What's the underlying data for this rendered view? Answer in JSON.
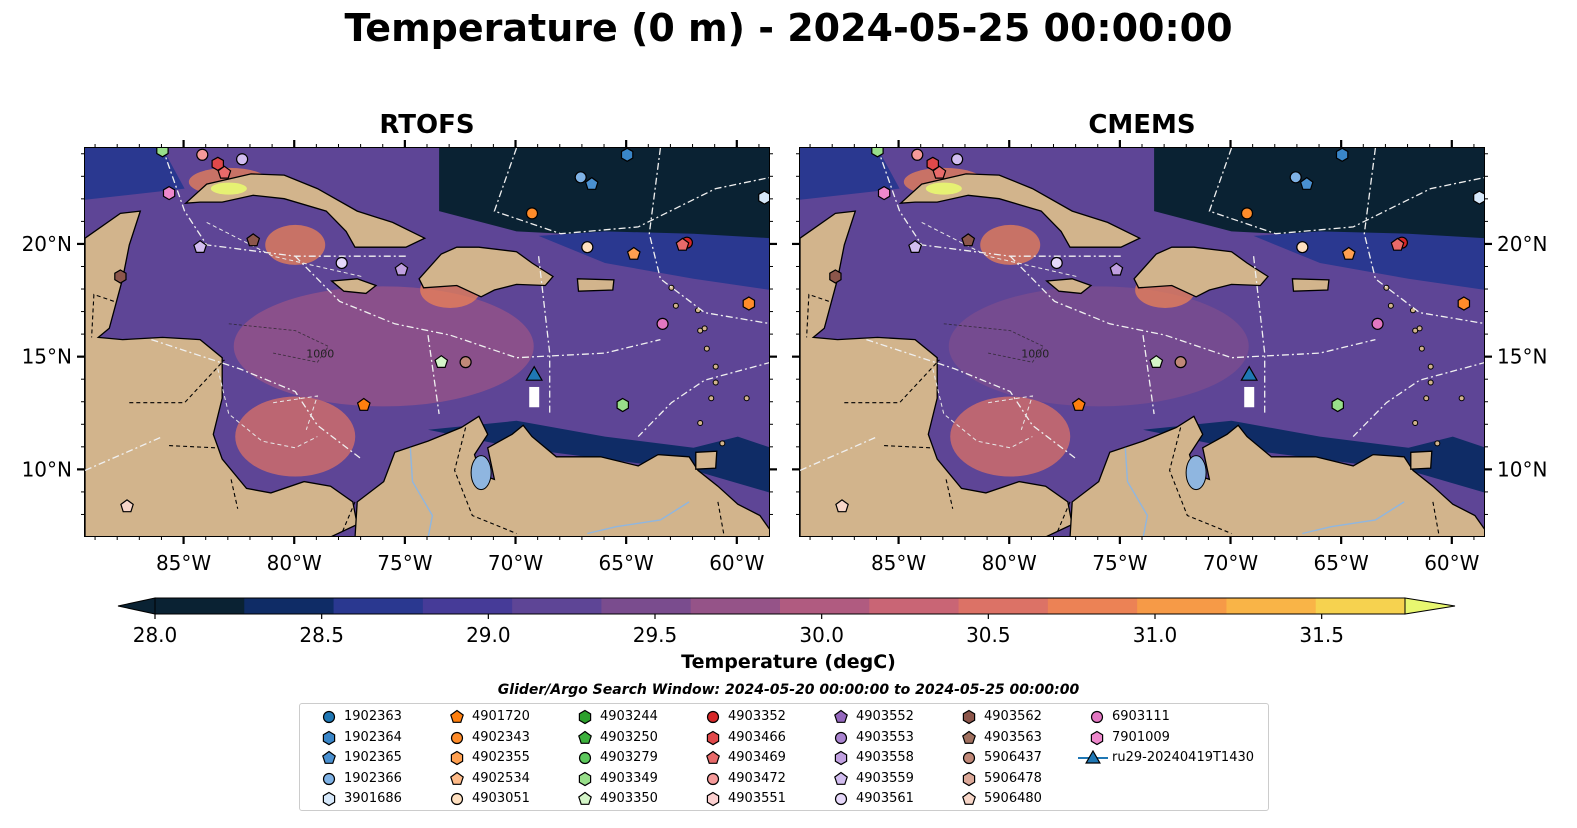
{
  "title": "Temperature (0 m) - 2024-05-25 00:00:00",
  "panels": [
    {
      "title": "RTOFS"
    },
    {
      "title": "CMEMS"
    }
  ],
  "axes": {
    "lon_ticks": [
      "85°W",
      "80°W",
      "75°W",
      "70°W",
      "65°W",
      "60°W"
    ],
    "lat_ticks": [
      "20°N",
      "15°N",
      "10°N"
    ],
    "lon_range": [
      -89.5,
      -58.5
    ],
    "lat_range": [
      7.0,
      24.3
    ],
    "contour_labels": [
      "1000",
      "1000"
    ]
  },
  "colorbar": {
    "label": "Temperature (degC)",
    "ticks": [
      "28.0",
      "28.5",
      "29.0",
      "29.5",
      "30.0",
      "30.5",
      "31.0",
      "31.5"
    ],
    "range": [
      28.0,
      31.75
    ],
    "colors": [
      "#0a2233",
      "#0f2c66",
      "#2a3890",
      "#463b98",
      "#5e4596",
      "#7a4c8e",
      "#955388",
      "#b05b80",
      "#c96575",
      "#dc7266",
      "#ec8255",
      "#f69a47",
      "#f9b447",
      "#f6d24f",
      "#e8f770"
    ]
  },
  "search_window": "Glider/Argo Search Window: 2024-05-20 00:00:00 to 2024-05-25 00:00:00",
  "legend": [
    {
      "label": "1902363",
      "color": "#1f77b4",
      "marker": "circle"
    },
    {
      "label": "1902364",
      "color": "#3a86c8",
      "marker": "hexagon"
    },
    {
      "label": "1902365",
      "color": "#4a90d0",
      "marker": "pentagon"
    },
    {
      "label": "1902366",
      "color": "#7fb2e5",
      "marker": "circle"
    },
    {
      "label": "3901686",
      "color": "#d6e8fa",
      "marker": "hexagon"
    },
    {
      "label": "4901720",
      "color": "#ff7f0e",
      "marker": "pentagon"
    },
    {
      "label": "4902343",
      "color": "#ff8c2a",
      "marker": "circle"
    },
    {
      "label": "4902355",
      "color": "#ffa050",
      "marker": "hexagon"
    },
    {
      "label": "4902534",
      "color": "#ffbb88",
      "marker": "pentagon"
    },
    {
      "label": "4903051",
      "color": "#ffe0c0",
      "marker": "circle"
    },
    {
      "label": "4903244",
      "color": "#2ca02c",
      "marker": "hexagon"
    },
    {
      "label": "4903250",
      "color": "#3cb03c",
      "marker": "pentagon"
    },
    {
      "label": "4903279",
      "color": "#5cc85c",
      "marker": "circle"
    },
    {
      "label": "4903349",
      "color": "#98df8a",
      "marker": "hexagon"
    },
    {
      "label": "4903350",
      "color": "#d4f5c8",
      "marker": "pentagon"
    },
    {
      "label": "4903352",
      "color": "#d62728",
      "marker": "circle"
    },
    {
      "label": "4903466",
      "color": "#e0484a",
      "marker": "hexagon"
    },
    {
      "label": "4903469",
      "color": "#e86a6a",
      "marker": "pentagon"
    },
    {
      "label": "4903472",
      "color": "#f59a9a",
      "marker": "circle"
    },
    {
      "label": "4903551",
      "color": "#fcd0d0",
      "marker": "hexagon"
    },
    {
      "label": "4903552",
      "color": "#9467bd",
      "marker": "pentagon"
    },
    {
      "label": "4903553",
      "color": "#a983cf",
      "marker": "circle"
    },
    {
      "label": "4903558",
      "color": "#c0a0e0",
      "marker": "hexagon"
    },
    {
      "label": "4903559",
      "color": "#d2bdf0",
      "marker": "pentagon"
    },
    {
      "label": "4903561",
      "color": "#e6d8fa",
      "marker": "circle"
    },
    {
      "label": "4903562",
      "color": "#8c564b",
      "marker": "hexagon"
    },
    {
      "label": "4903563",
      "color": "#a0705f",
      "marker": "pentagon"
    },
    {
      "label": "5906437",
      "color": "#c08878",
      "marker": "circle"
    },
    {
      "label": "5906478",
      "color": "#dba898",
      "marker": "hexagon"
    },
    {
      "label": "5906480",
      "color": "#f7d6c8",
      "marker": "pentagon"
    },
    {
      "label": "6903111",
      "color": "#e377c2",
      "marker": "circle"
    },
    {
      "label": "7901009",
      "color": "#ee88cc",
      "marker": "hexagon"
    },
    {
      "label": "ru29-20240419T1430",
      "color": "#1f77b4",
      "marker": "triangle"
    }
  ],
  "observations": [
    {
      "lon": -86.0,
      "lat": 24.2,
      "color": "#98df8a",
      "marker": "hexagon"
    },
    {
      "lon": -84.2,
      "lat": 24.0,
      "color": "#f59a9a",
      "marker": "circle"
    },
    {
      "lon": -83.5,
      "lat": 23.6,
      "color": "#e0484a",
      "marker": "hexagon"
    },
    {
      "lon": -83.2,
      "lat": 23.2,
      "color": "#e86a6a",
      "marker": "pentagon"
    },
    {
      "lon": -82.4,
      "lat": 23.8,
      "color": "#d2bdf0",
      "marker": "circle"
    },
    {
      "lon": -85.7,
      "lat": 22.3,
      "color": "#ee88cc",
      "marker": "hexagon"
    },
    {
      "lon": -65.0,
      "lat": 24.0,
      "color": "#3a86c8",
      "marker": "hexagon"
    },
    {
      "lon": -67.1,
      "lat": 23.0,
      "color": "#7fb2e5",
      "marker": "circle"
    },
    {
      "lon": -66.6,
      "lat": 22.7,
      "color": "#4a90d0",
      "marker": "pentagon"
    },
    {
      "lon": -69.3,
      "lat": 21.4,
      "color": "#ff8c2a",
      "marker": "circle"
    },
    {
      "lon": -58.8,
      "lat": 22.1,
      "color": "#d6e8fa",
      "marker": "hexagon"
    },
    {
      "lon": -62.3,
      "lat": 20.1,
      "color": "#d62728",
      "marker": "circle"
    },
    {
      "lon": -62.5,
      "lat": 20.0,
      "color": "#e86a6a",
      "marker": "pentagon"
    },
    {
      "lon": -66.8,
      "lat": 19.9,
      "color": "#ffe0c0",
      "marker": "circle"
    },
    {
      "lon": -64.7,
      "lat": 19.6,
      "color": "#ffa050",
      "marker": "pentagon"
    },
    {
      "lon": -59.5,
      "lat": 17.4,
      "color": "#ff8c2a",
      "marker": "hexagon"
    },
    {
      "lon": -63.4,
      "lat": 16.5,
      "color": "#e377c2",
      "marker": "circle"
    },
    {
      "lon": -84.3,
      "lat": 19.9,
      "color": "#d2bdf0",
      "marker": "pentagon"
    },
    {
      "lon": -81.9,
      "lat": 20.2,
      "color": "#8c564b",
      "marker": "pentagon"
    },
    {
      "lon": -77.9,
      "lat": 19.2,
      "color": "#e6d8fa",
      "marker": "circle"
    },
    {
      "lon": -75.2,
      "lat": 18.9,
      "color": "#c0a0e0",
      "marker": "pentagon"
    },
    {
      "lon": -87.9,
      "lat": 18.6,
      "color": "#8c564b",
      "marker": "hexagon"
    },
    {
      "lon": -73.4,
      "lat": 14.8,
      "color": "#d4f5c8",
      "marker": "pentagon"
    },
    {
      "lon": -72.3,
      "lat": 14.8,
      "color": "#c08878",
      "marker": "circle"
    },
    {
      "lon": -76.9,
      "lat": 12.9,
      "color": "#ff7f0e",
      "marker": "pentagon"
    },
    {
      "lon": -65.2,
      "lat": 12.9,
      "color": "#98df8a",
      "marker": "hexagon"
    },
    {
      "lon": -87.6,
      "lat": 8.4,
      "color": "#f7d6c8",
      "marker": "pentagon"
    }
  ],
  "glider_track": {
    "label": "ru29-20240419T1430",
    "lon": -69.2,
    "lat_start": 12.8,
    "lat_end": 14.2
  }
}
